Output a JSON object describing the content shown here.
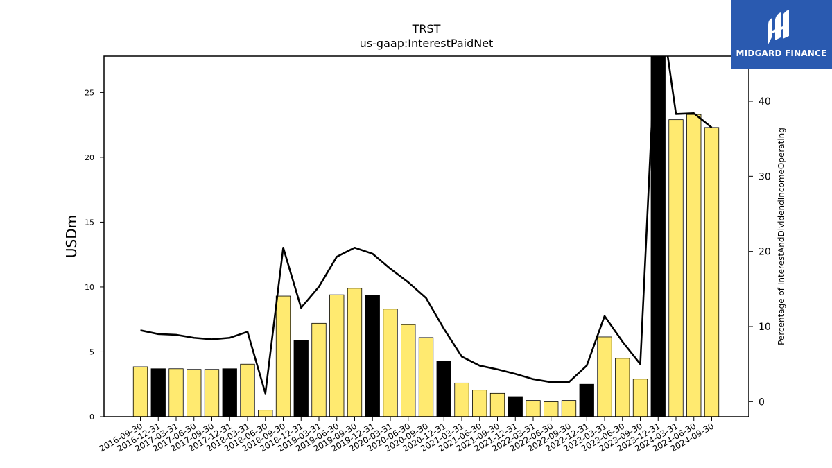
{
  "header": {
    "ticker": "TRST",
    "concept": "us-gaap:InterestPaidNet"
  },
  "brand": {
    "name": "MIDGARD FINANCE",
    "background": "#2a5ab0"
  },
  "colors": {
    "bar_default": "#ffea70",
    "bar_highlight": "#000000",
    "line": "#000000"
  },
  "chart_data": {
    "type": "bar",
    "title": "TRST",
    "subtitle": "us-gaap:InterestPaidNet",
    "ylabel": "USDm",
    "y2label": "Percentage of InterestAndDividendIncomeOperating",
    "ylim": [
      0,
      27.8
    ],
    "y2lim": [
      -2,
      46
    ],
    "yticks": [
      0,
      5,
      10,
      15,
      20,
      25
    ],
    "y2ticks": [
      0,
      10,
      20,
      30,
      40
    ],
    "categories": [
      "2016-09-30",
      "2016-12-31",
      "2017-03-31",
      "2017-06-30",
      "2017-09-30",
      "2017-12-31",
      "2018-03-31",
      "2018-06-30",
      "2018-09-30",
      "2018-12-31",
      "2019-03-31",
      "2019-06-30",
      "2019-09-30",
      "2019-12-31",
      "2020-03-31",
      "2020-06-30",
      "2020-09-30",
      "2020-12-31",
      "2021-03-31",
      "2021-06-30",
      "2021-09-30",
      "2021-12-31",
      "2022-03-31",
      "2022-06-30",
      "2022-09-30",
      "2022-12-31",
      "2023-03-31",
      "2023-06-30",
      "2023-09-30",
      "2023-12-31",
      "2024-03-31",
      "2024-06-30",
      "2024-09-30"
    ],
    "series": [
      {
        "kind": "bar",
        "values": [
          3.85,
          3.7,
          3.7,
          3.65,
          3.65,
          3.7,
          4.05,
          0.5,
          9.3,
          5.9,
          7.2,
          9.4,
          9.9,
          9.35,
          8.3,
          7.1,
          6.1,
          4.3,
          2.6,
          2.05,
          1.8,
          1.55,
          1.25,
          1.15,
          1.25,
          2.5,
          6.15,
          4.5,
          2.9,
          28.5,
          22.9,
          23.3,
          22.3
        ],
        "highlight": [
          false,
          true,
          false,
          false,
          false,
          true,
          false,
          false,
          false,
          true,
          false,
          false,
          false,
          true,
          false,
          false,
          false,
          true,
          false,
          false,
          false,
          true,
          false,
          false,
          false,
          true,
          false,
          false,
          false,
          true,
          false,
          false,
          false
        ]
      },
      {
        "kind": "line",
        "axis": "right",
        "values": [
          9.5,
          9.0,
          8.9,
          8.5,
          8.3,
          8.5,
          9.3,
          1.1,
          20.5,
          12.5,
          15.3,
          19.3,
          20.5,
          19.7,
          17.7,
          15.9,
          13.8,
          9.7,
          6.0,
          4.8,
          4.3,
          3.7,
          3.0,
          2.6,
          2.6,
          4.8,
          11.4,
          8.0,
          5.0,
          55.0,
          38.3,
          38.4,
          36.5
        ]
      }
    ]
  }
}
